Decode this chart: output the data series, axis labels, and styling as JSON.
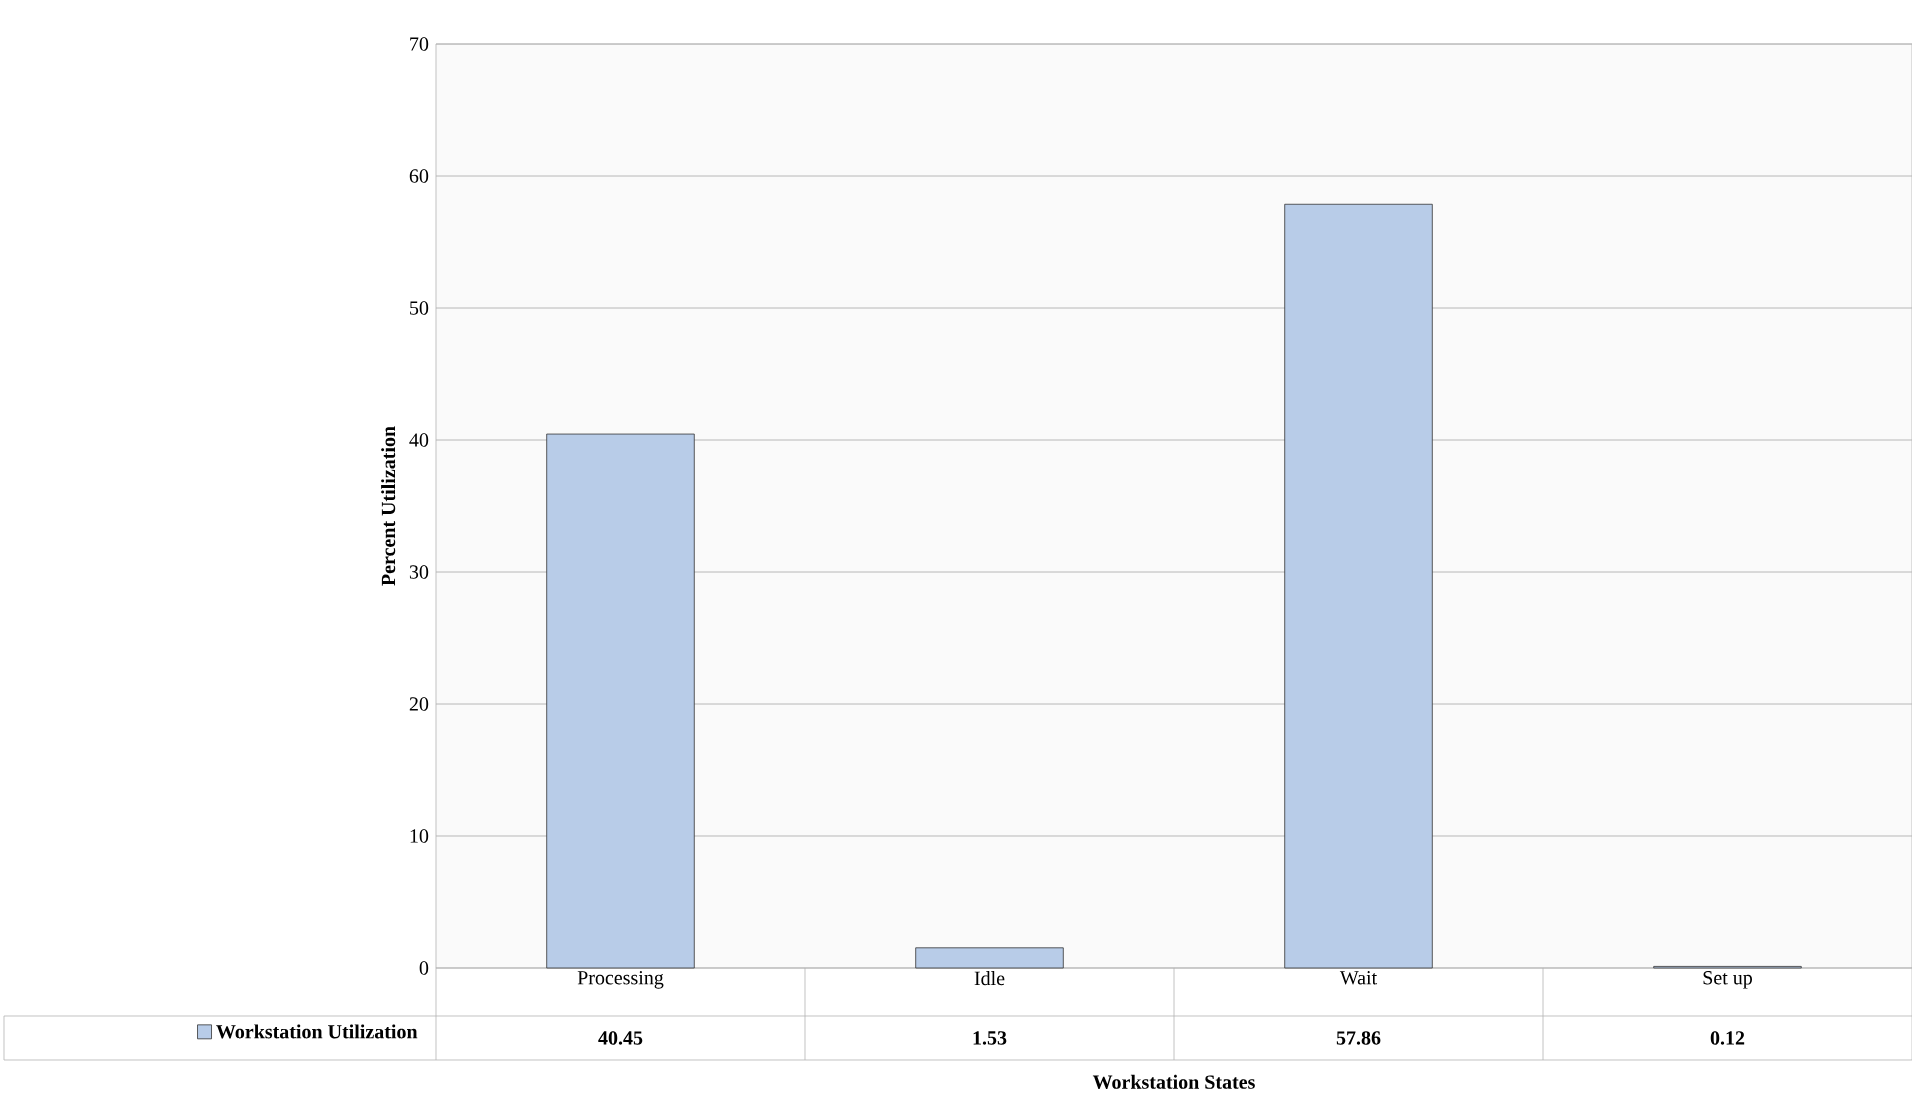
{
  "chart_data": {
    "type": "bar",
    "xlabel": "Workstation States",
    "ylabel": "Percent Utilization",
    "categories": [
      "Processing",
      "Idle",
      "Wait",
      "Set up"
    ],
    "series": [
      {
        "name": "Workstation Utilization",
        "color": "#b8cce8",
        "values": [
          40.45,
          1.53,
          57.86,
          0.12
        ]
      }
    ],
    "ylim": [
      0,
      70
    ],
    "yticks": [
      0,
      10,
      20,
      30,
      40,
      50,
      60,
      70
    ],
    "grid": "y",
    "legend": "bottom left",
    "data_labels": true
  }
}
